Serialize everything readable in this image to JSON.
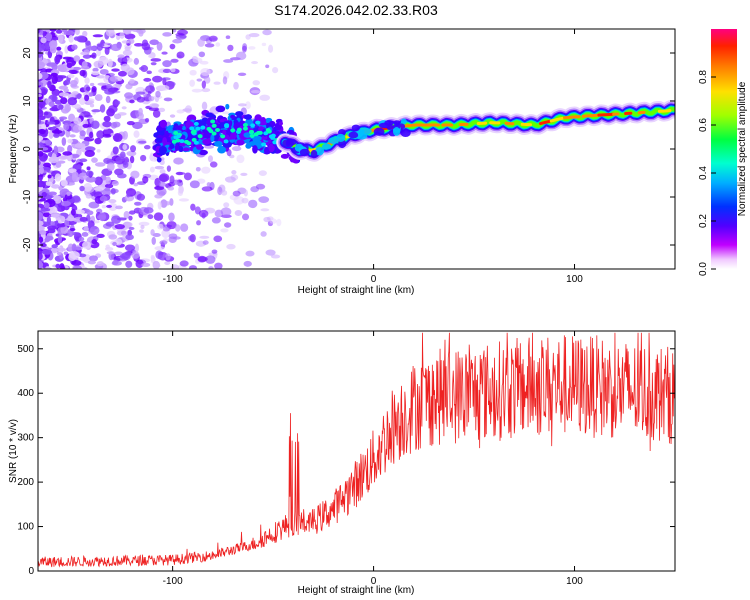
{
  "title": "S174.2026.042.02.33.R03",
  "colors": {
    "snr_line": "#ee2222",
    "band_core": "#ff2a00",
    "rainbow": [
      "#ff00ff",
      "#7a00ff",
      "#1a00ff",
      "#0055ff",
      "#00d0ff",
      "#00ff80",
      "#40ff00",
      "#ffe000",
      "#ff8000",
      "#ff0000"
    ]
  },
  "chart_data": [
    {
      "type": "heatmap",
      "title": "S174.2026.042.02.33.R03",
      "xlabel": "Height of straight line (km)",
      "ylabel": "Frequency (Hz)",
      "xlim": [
        -167,
        150
      ],
      "ylim": [
        -25,
        25
      ],
      "xticks": [
        "-100",
        "0",
        "100"
      ],
      "yticks": [
        "-20",
        "-10",
        "0",
        "10",
        "20"
      ],
      "colorbar": {
        "label": "Normalized spectral amplitude",
        "range": [
          0,
          1
        ],
        "ticks": [
          "0.0",
          "0.2",
          "0.4",
          "0.6",
          "0.8"
        ]
      },
      "ridge": {
        "description": "dominant frequency ridge vs height",
        "x": [
          -100,
          -80,
          -60,
          -45,
          -38,
          -30,
          -20,
          -10,
          0,
          10,
          20,
          40,
          60,
          80,
          95,
          110,
          130,
          148
        ],
        "y": [
          2,
          4,
          3.5,
          2,
          0,
          -0.5,
          1.5,
          3,
          4,
          4.5,
          5,
          5,
          5.5,
          5,
          6.5,
          7,
          7.5,
          8
        ]
      }
    },
    {
      "type": "line",
      "xlabel": "Height of straight line (km)",
      "ylabel": "SNR (10 * v/v)",
      "xlim": [
        -167,
        150
      ],
      "ylim": [
        0,
        540
      ],
      "xticks": [
        "-100",
        "0",
        "100"
      ],
      "yticks": [
        "0",
        "100",
        "200",
        "300",
        "400",
        "500"
      ],
      "series": [
        {
          "name": "SNR",
          "description": "noisy trace; envelope (mean level) at listed heights",
          "x": [
            -167,
            -100,
            -80,
            -60,
            -40,
            -30,
            -20,
            -10,
            0,
            10,
            20,
            30,
            50,
            70,
            90,
            110,
            130,
            150
          ],
          "values": [
            20,
            25,
            35,
            60,
            110,
            110,
            140,
            190,
            250,
            330,
            370,
            390,
            400,
            410,
            420,
            415,
            405,
            395
          ]
        }
      ]
    }
  ]
}
